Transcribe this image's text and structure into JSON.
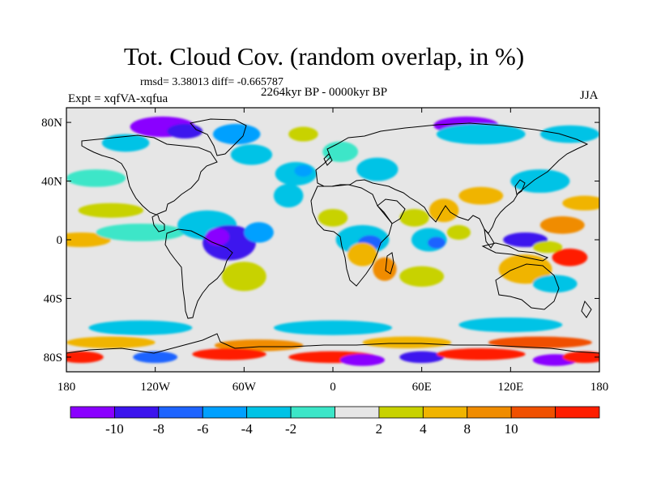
{
  "title": "Tot. Cloud Cov. (random overlap, in %)",
  "stats": "rmsd= 3.38013 diff= -0.665787",
  "period": "2264kyr BP - 0000kyr BP",
  "experiment": "Expt = xqfVA-xqfua",
  "season": "JJA",
  "axes": {
    "y_ticks": [
      {
        "label": "80N",
        "lat": 80
      },
      {
        "label": "40N",
        "lat": 40
      },
      {
        "label": "0",
        "lat": 0
      },
      {
        "label": "40S",
        "lat": -40
      },
      {
        "label": "80S",
        "lat": -80
      }
    ],
    "x_ticks": [
      {
        "label": "180",
        "lon": -180
      },
      {
        "label": "120W",
        "lon": -120
      },
      {
        "label": "60W",
        "lon": -60
      },
      {
        "label": "0",
        "lon": 0
      },
      {
        "label": "60E",
        "lon": 60
      },
      {
        "label": "120E",
        "lon": 120
      },
      {
        "label": "180",
        "lon": 180
      }
    ],
    "lon_range": [
      -180,
      180
    ],
    "lat_range": [
      -90,
      90
    ]
  },
  "colorbar": {
    "colors": [
      "#8a00ff",
      "#3c14ee",
      "#1e64ff",
      "#00a0ff",
      "#00c3e6",
      "#3ce6c8",
      "#e6e6e6",
      "#c8d200",
      "#f0b400",
      "#f08c00",
      "#f05000",
      "#ff1e00"
    ],
    "labels": [
      "-10",
      "-8",
      "-6",
      "-4",
      "-2",
      "2",
      "4",
      "8",
      "10"
    ],
    "label_boundaries": [
      1,
      2,
      3,
      4,
      5,
      7,
      8,
      9,
      10
    ]
  },
  "field": {
    "background_class": 6,
    "blobs": [
      {
        "lon": -115,
        "lat": 77,
        "rx": 22,
        "ry": 7,
        "c": 0
      },
      {
        "lon": -100,
        "lat": 74,
        "rx": 12,
        "ry": 5,
        "c": 1
      },
      {
        "lon": -65,
        "lat": 72,
        "rx": 16,
        "ry": 7,
        "c": 3
      },
      {
        "lon": -140,
        "lat": 66,
        "rx": 16,
        "ry": 6,
        "c": 4
      },
      {
        "lon": -55,
        "lat": 58,
        "rx": 14,
        "ry": 7,
        "c": 4
      },
      {
        "lon": -25,
        "lat": 45,
        "rx": 14,
        "ry": 8,
        "c": 4
      },
      {
        "lon": -20,
        "lat": 47,
        "rx": 6,
        "ry": 4,
        "c": 3
      },
      {
        "lon": 30,
        "lat": 48,
        "rx": 14,
        "ry": 8,
        "c": 4
      },
      {
        "lon": 90,
        "lat": 78,
        "rx": 22,
        "ry": 6,
        "c": 0
      },
      {
        "lon": 100,
        "lat": 72,
        "rx": 30,
        "ry": 7,
        "c": 4
      },
      {
        "lon": 160,
        "lat": 72,
        "rx": 20,
        "ry": 6,
        "c": 4
      },
      {
        "lon": -20,
        "lat": 72,
        "rx": 10,
        "ry": 5,
        "c": 7
      },
      {
        "lon": 5,
        "lat": 60,
        "rx": 12,
        "ry": 7,
        "c": 5
      },
      {
        "lon": -160,
        "lat": 42,
        "rx": 20,
        "ry": 6,
        "c": 5
      },
      {
        "lon": -150,
        "lat": 20,
        "rx": 22,
        "ry": 5,
        "c": 7
      },
      {
        "lon": -170,
        "lat": 0,
        "rx": 20,
        "ry": 5,
        "c": 8
      },
      {
        "lon": -130,
        "lat": 5,
        "rx": 30,
        "ry": 6,
        "c": 5
      },
      {
        "lon": -85,
        "lat": 10,
        "rx": 20,
        "ry": 10,
        "c": 4
      },
      {
        "lon": -70,
        "lat": -2,
        "rx": 18,
        "ry": 12,
        "c": 1
      },
      {
        "lon": -78,
        "lat": 2,
        "rx": 8,
        "ry": 6,
        "c": 0
      },
      {
        "lon": -50,
        "lat": 5,
        "rx": 10,
        "ry": 7,
        "c": 3
      },
      {
        "lon": -60,
        "lat": -25,
        "rx": 15,
        "ry": 10,
        "c": 7
      },
      {
        "lon": -30,
        "lat": 30,
        "rx": 10,
        "ry": 8,
        "c": 4
      },
      {
        "lon": 0,
        "lat": 15,
        "rx": 10,
        "ry": 6,
        "c": 7
      },
      {
        "lon": 20,
        "lat": 0,
        "rx": 18,
        "ry": 10,
        "c": 4
      },
      {
        "lon": 25,
        "lat": -2,
        "rx": 8,
        "ry": 5,
        "c": 2
      },
      {
        "lon": 35,
        "lat": -20,
        "rx": 8,
        "ry": 8,
        "c": 9
      },
      {
        "lon": 20,
        "lat": -10,
        "rx": 10,
        "ry": 8,
        "c": 8
      },
      {
        "lon": 55,
        "lat": 15,
        "rx": 10,
        "ry": 6,
        "c": 7
      },
      {
        "lon": 65,
        "lat": 0,
        "rx": 12,
        "ry": 8,
        "c": 4
      },
      {
        "lon": 70,
        "lat": -2,
        "rx": 6,
        "ry": 4,
        "c": 2
      },
      {
        "lon": 75,
        "lat": 20,
        "rx": 10,
        "ry": 8,
        "c": 8
      },
      {
        "lon": 85,
        "lat": 5,
        "rx": 8,
        "ry": 5,
        "c": 7
      },
      {
        "lon": 60,
        "lat": -25,
        "rx": 15,
        "ry": 7,
        "c": 7
      },
      {
        "lon": 100,
        "lat": 30,
        "rx": 15,
        "ry": 6,
        "c": 8
      },
      {
        "lon": 140,
        "lat": 40,
        "rx": 20,
        "ry": 8,
        "c": 4
      },
      {
        "lon": 155,
        "lat": 10,
        "rx": 15,
        "ry": 6,
        "c": 9
      },
      {
        "lon": 170,
        "lat": 25,
        "rx": 15,
        "ry": 5,
        "c": 8
      },
      {
        "lon": 130,
        "lat": 0,
        "rx": 15,
        "ry": 5,
        "c": 1
      },
      {
        "lon": 145,
        "lat": -5,
        "rx": 10,
        "ry": 4,
        "c": 7
      },
      {
        "lon": 160,
        "lat": -12,
        "rx": 12,
        "ry": 6,
        "c": 11
      },
      {
        "lon": 130,
        "lat": -20,
        "rx": 18,
        "ry": 10,
        "c": 8
      },
      {
        "lon": 150,
        "lat": -30,
        "rx": 15,
        "ry": 6,
        "c": 4
      },
      {
        "lon": -130,
        "lat": -60,
        "rx": 35,
        "ry": 5,
        "c": 4
      },
      {
        "lon": 0,
        "lat": -60,
        "rx": 40,
        "ry": 5,
        "c": 4
      },
      {
        "lon": 120,
        "lat": -58,
        "rx": 35,
        "ry": 5,
        "c": 4
      },
      {
        "lon": -150,
        "lat": -70,
        "rx": 30,
        "ry": 4,
        "c": 8
      },
      {
        "lon": -50,
        "lat": -72,
        "rx": 30,
        "ry": 4,
        "c": 9
      },
      {
        "lon": 50,
        "lat": -70,
        "rx": 30,
        "ry": 4,
        "c": 8
      },
      {
        "lon": 140,
        "lat": -70,
        "rx": 35,
        "ry": 4,
        "c": 10
      },
      {
        "lon": -170,
        "lat": -80,
        "rx": 15,
        "ry": 4,
        "c": 11
      },
      {
        "lon": -120,
        "lat": -80,
        "rx": 15,
        "ry": 4,
        "c": 2
      },
      {
        "lon": -70,
        "lat": -78,
        "rx": 25,
        "ry": 4,
        "c": 11
      },
      {
        "lon": 0,
        "lat": -80,
        "rx": 30,
        "ry": 4,
        "c": 11
      },
      {
        "lon": 20,
        "lat": -82,
        "rx": 15,
        "ry": 4,
        "c": 0
      },
      {
        "lon": 60,
        "lat": -80,
        "rx": 15,
        "ry": 4,
        "c": 1
      },
      {
        "lon": 100,
        "lat": -78,
        "rx": 30,
        "ry": 4,
        "c": 11
      },
      {
        "lon": 150,
        "lat": -82,
        "rx": 15,
        "ry": 4,
        "c": 0
      },
      {
        "lon": 170,
        "lat": -80,
        "rx": 15,
        "ry": 4,
        "c": 11
      }
    ]
  }
}
